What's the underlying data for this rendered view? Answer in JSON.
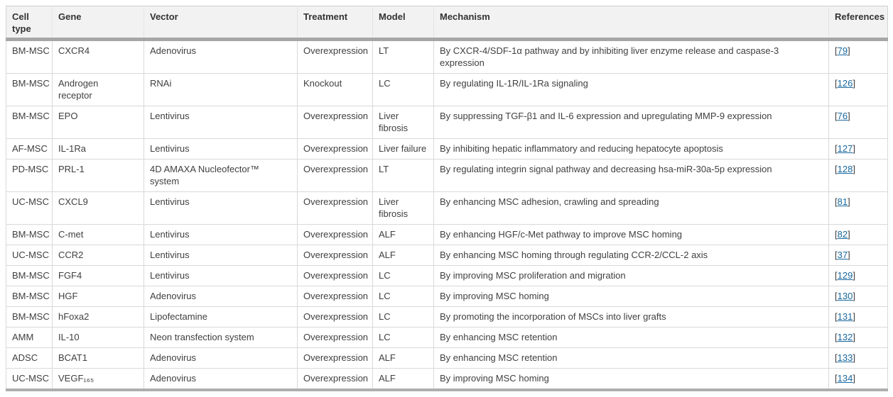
{
  "colors": {
    "link_blue": "#18679e",
    "header_bg": "#f2f2f2",
    "header_rule_gray": "#a6a6a6",
    "cell_border": "#d9d9d9",
    "body_text": "#404040",
    "header_text": "#333333"
  },
  "table": {
    "headers": [
      {
        "key": "cell_type",
        "label": "Cell type"
      },
      {
        "key": "gene",
        "label": "Gene"
      },
      {
        "key": "vector",
        "label": "Vector"
      },
      {
        "key": "treatment",
        "label": "Treatment"
      },
      {
        "key": "model",
        "label": "Model"
      },
      {
        "key": "mechanism",
        "label": "Mechanism"
      },
      {
        "key": "references",
        "label": "References"
      }
    ],
    "reference_brackets": {
      "open": "[",
      "close": "]"
    },
    "rows": [
      {
        "cell_type": "BM-MSC",
        "gene": "CXCR4",
        "vector": "Adenovirus",
        "treatment": "Overexpression",
        "model": "LT",
        "mechanism": "By CXCR-4/SDF-1α pathway and by inhibiting liver enzyme release and caspase-3\nexpression",
        "reference": "79"
      },
      {
        "cell_type": "BM-MSC",
        "gene": "Androgen\nreceptor",
        "vector": "RNAi",
        "treatment": "Knockout",
        "model": "LC",
        "mechanism": "By regulating IL-1R/IL-1Ra signaling",
        "reference": "126"
      },
      {
        "cell_type": "BM-MSC",
        "gene": "EPO",
        "vector": "Lentivirus",
        "treatment": "Overexpression",
        "model": "Liver\nfibrosis",
        "mechanism": "By suppressing TGF-β1 and IL-6 expression and upregulating MMP-9 expression",
        "reference": "76"
      },
      {
        "cell_type": "AF-MSC",
        "gene": "IL-1Ra",
        "vector": "Lentivirus",
        "treatment": "Overexpression",
        "model": "Liver failure",
        "mechanism": "By inhibiting hepatic inflammatory and reducing hepatocyte apoptosis",
        "reference": "127"
      },
      {
        "cell_type": "PD-MSC",
        "gene": "PRL-1",
        "vector": "4D AMAXA Nucleofector™\nsystem",
        "treatment": "Overexpression",
        "model": "LT",
        "mechanism": "By regulating integrin signal pathway and decreasing hsa-miR-30a-5p expression",
        "reference": "128"
      },
      {
        "cell_type": "UC-MSC",
        "gene": "CXCL9",
        "vector": "Lentivirus",
        "treatment": "Overexpression",
        "model": "Liver\nfibrosis",
        "mechanism": "By enhancing MSC adhesion, crawling and spreading",
        "reference": "81"
      },
      {
        "cell_type": "BM-MSC",
        "gene": "C-met",
        "vector": "Lentivirus",
        "treatment": "Overexpression",
        "model": "ALF",
        "mechanism": "By enhancing HGF/c-Met pathway to improve MSC homing",
        "reference": "82"
      },
      {
        "cell_type": "UC-MSC",
        "gene": "CCR2",
        "vector": "Lentivirus",
        "treatment": "Overexpression",
        "model": "ALF",
        "mechanism": "By enhancing MSC homing through regulating CCR-2/CCL-2 axis",
        "reference": "37"
      },
      {
        "cell_type": "BM-MSC",
        "gene": "FGF4",
        "vector": "Lentivirus",
        "treatment": "Overexpression",
        "model": "LC",
        "mechanism": "By improving MSC proliferation and migration",
        "reference": "129"
      },
      {
        "cell_type": "BM-MSC",
        "gene": "HGF",
        "vector": "Adenovirus",
        "treatment": "Overexpression",
        "model": "LC",
        "mechanism": "By improving MSC homing",
        "reference": "130"
      },
      {
        "cell_type": "BM-MSC",
        "gene": "hFoxa2",
        "vector": "Lipofectamine",
        "treatment": "Overexpression",
        "model": "LC",
        "mechanism": "By promoting the incorporation of MSCs into liver grafts",
        "reference": "131"
      },
      {
        "cell_type": "AMM",
        "gene": "IL-10",
        "vector": "Neon transfection system",
        "treatment": "Overexpression",
        "model": "LC",
        "mechanism": "By enhancing MSC retention",
        "reference": "132"
      },
      {
        "cell_type": "ADSC",
        "gene": "BCAT1",
        "vector": "Adenovirus",
        "treatment": "Overexpression",
        "model": "ALF",
        "mechanism": "By enhancing MSC retention",
        "reference": "133"
      },
      {
        "cell_type": "UC-MSC",
        "gene": "VEGF₁₆₅",
        "vector": "Adenovirus",
        "treatment": "Overexpression",
        "model": "ALF",
        "mechanism": "By improving MSC homing",
        "reference": "134"
      }
    ]
  }
}
